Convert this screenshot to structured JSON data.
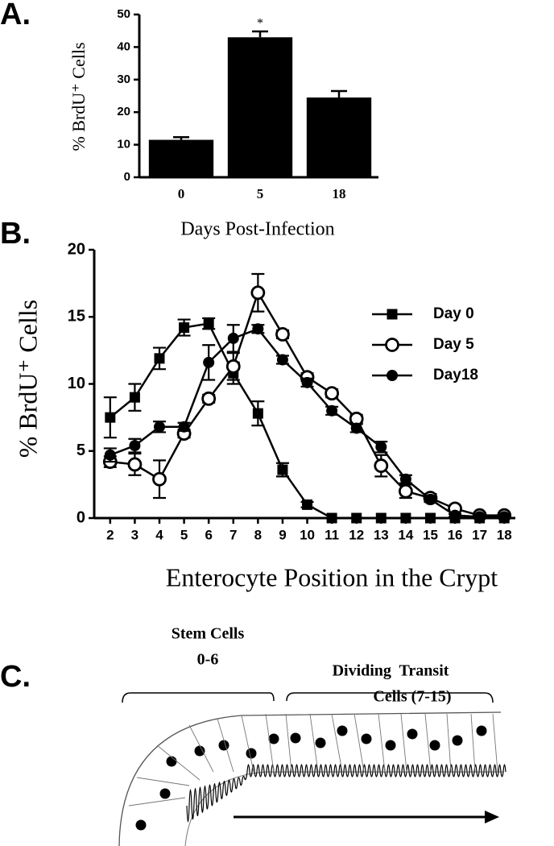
{
  "panel_labels": [
    "A.",
    "B.",
    "C."
  ],
  "chart_data": [
    {
      "type": "bar",
      "categories": [
        "0",
        "5",
        "18"
      ],
      "values": [
        11.5,
        43,
        24.5
      ],
      "errors": [
        0.8,
        1.8,
        2.0
      ],
      "annotation": "*",
      "color": "#000000",
      "ylabel": "% BrdU⁺ Cells",
      "xlabel": "Days Post-Infection",
      "ylim": [
        0,
        50
      ],
      "yticks": [
        0,
        10,
        20,
        30,
        40,
        50
      ]
    },
    {
      "type": "line",
      "x": [
        2,
        3,
        4,
        5,
        6,
        7,
        8,
        9,
        10,
        11,
        12,
        13,
        14,
        15,
        16,
        17,
        18
      ],
      "series": [
        {
          "name": "Day 0",
          "color": "#000000",
          "marker": "square",
          "values": [
            7.5,
            9.0,
            11.9,
            14.2,
            14.5,
            10.8,
            7.8,
            3.6,
            1.0,
            0,
            0,
            0,
            0,
            0,
            0,
            0,
            0
          ],
          "errors": [
            1.5,
            1.0,
            0.8,
            0.6,
            0.4,
            0.8,
            0.9,
            0.5,
            0.2,
            0,
            0,
            0,
            0,
            0,
            0,
            0,
            0
          ]
        },
        {
          "name": "Day 5",
          "color": "#000000",
          "marker": "open-circle",
          "values": [
            4.2,
            4.0,
            2.9,
            6.3,
            8.9,
            11.3,
            16.8,
            13.7,
            10.5,
            9.3,
            7.4,
            3.9,
            2.0,
            1.5,
            0.7,
            0.2,
            0.2
          ],
          "errors": [
            0.4,
            0.8,
            1.4,
            0.3,
            0.3,
            1.0,
            1.4,
            0.3,
            0.3,
            0.3,
            0.3,
            0.8,
            0.5,
            0.3,
            0.2,
            0.1,
            0.1
          ]
        },
        {
          "name": "Day18",
          "color": "#000000",
          "marker": "circle",
          "values": [
            4.7,
            5.4,
            6.8,
            6.8,
            11.6,
            13.4,
            14.1,
            11.8,
            10.1,
            8.0,
            6.7,
            5.3,
            2.9,
            1.4,
            0.2,
            0.1,
            0.1
          ],
          "errors": [
            0.5,
            0.5,
            0.4,
            0.3,
            1.3,
            1.0,
            0.3,
            0.3,
            0.3,
            0.3,
            0.3,
            0.4,
            0.3,
            0.2,
            0.1,
            0.1,
            0.1
          ]
        }
      ],
      "ylabel": "% BrdU⁺ Cells",
      "xlabel": "Enterocyte Position in the Crypt",
      "xlim": [
        1.45,
        18.45
      ],
      "ylim": [
        0,
        20
      ],
      "yticks": [
        0,
        5,
        10,
        15,
        20
      ],
      "xticks": [
        2,
        3,
        4,
        5,
        6,
        7,
        8,
        9,
        10,
        11,
        12,
        13,
        14,
        15,
        16,
        17,
        18
      ],
      "legend": "upper right"
    }
  ],
  "diagram": {
    "labels": [
      "Stem Cells",
      "0-6",
      "Dividing  Transit",
      "Cells (7-15)"
    ]
  }
}
